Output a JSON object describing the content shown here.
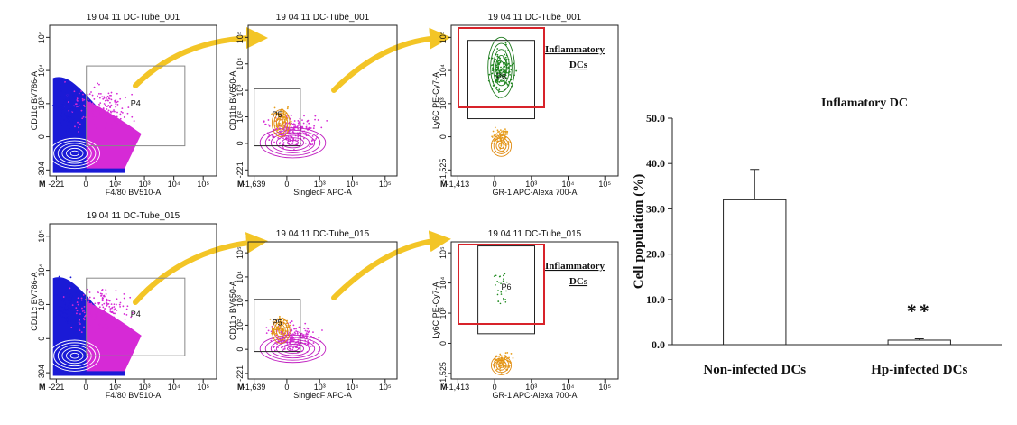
{
  "flow_panels": [
    {
      "title": "19 04 11 DC-Tube_001",
      "x_label": "F4/80 BV510-A",
      "y_label": "CD11c BV786-A",
      "gate": "P4",
      "x_ticks": [
        "-221",
        "0",
        "10²",
        "10³",
        "10⁴",
        "10⁵"
      ],
      "y_ticks": [
        "-304",
        "0",
        "10³",
        "10⁴",
        "10⁵"
      ]
    },
    {
      "title": "19 04 11 DC-Tube_001",
      "x_label": "SinglecF APC-A",
      "y_label": "CD11b BV650-A",
      "gate": "P5",
      "x_ticks": [
        "-1,639",
        "0",
        "10³",
        "10⁴",
        "10⁵"
      ],
      "y_ticks": [
        "-221",
        "0",
        "10²",
        "10³",
        "10⁴",
        "10⁵"
      ]
    },
    {
      "title": "19 04 11 DC-Tube_001",
      "x_label": "GR-1 APC-Alexa 700-A",
      "y_label": "Ly6C PE-Cy7-A",
      "gate": "P6",
      "x_ticks": [
        "-1,413",
        "0",
        "10³",
        "10⁴",
        "10⁵"
      ],
      "y_ticks": [
        "-1,525",
        "0",
        "10³",
        "10⁴",
        "10⁵"
      ]
    },
    {
      "title": "19 04 11 DC-Tube_015",
      "x_label": "F4/80 BV510-A",
      "y_label": "CD11c BV786-A",
      "gate": "P4",
      "x_ticks": [
        "-221",
        "0",
        "10²",
        "10³",
        "10⁴",
        "10⁵"
      ],
      "y_ticks": [
        "-304",
        "0",
        "10³",
        "10⁴",
        "10⁵"
      ]
    },
    {
      "title": "19 04 11 DC-Tube_015",
      "x_label": "SinglecF APC-A",
      "y_label": "CD11b BV650-A",
      "gate": "P5",
      "x_ticks": [
        "-1,639",
        "0",
        "10³",
        "10⁴",
        "10⁵"
      ],
      "y_ticks": [
        "-221",
        "0",
        "10²",
        "10³",
        "10⁴",
        "10⁵"
      ]
    },
    {
      "title": "19 04 11 DC-Tube_015",
      "x_label": "GR-1 APC-Alexa 700-A",
      "y_label": "Ly6C PE-Cy7-A",
      "gate": "P6",
      "x_ticks": [
        "-1,413",
        "0",
        "10³",
        "10⁴",
        "10⁵"
      ],
      "y_ticks": [
        "-1,525",
        "0",
        "10³",
        "10⁴",
        "10⁵"
      ]
    }
  ],
  "corner_mark": "M",
  "population_label": [
    "Inflammatory",
    "DCs"
  ],
  "chart_data": {
    "type": "bar",
    "title": "Inflamatory DC",
    "y_label": "Cell population (%)",
    "categories": [
      "Non-infected DCs",
      "Hp-infected DCs"
    ],
    "values": [
      32.0,
      1.0
    ],
    "errors": [
      6.7,
      0.3
    ],
    "color": "#ffffff",
    "annotation": "**",
    "ylim": [
      0,
      50
    ],
    "yticks": [
      {
        "value": 0,
        "label": "0.0"
      },
      {
        "value": 10,
        "label": "10.0"
      },
      {
        "value": 20,
        "label": "20.0"
      },
      {
        "value": 30,
        "label": "30.0"
      },
      {
        "value": 40,
        "label": "40.0"
      },
      {
        "value": 50,
        "label": "50.0"
      }
    ]
  }
}
